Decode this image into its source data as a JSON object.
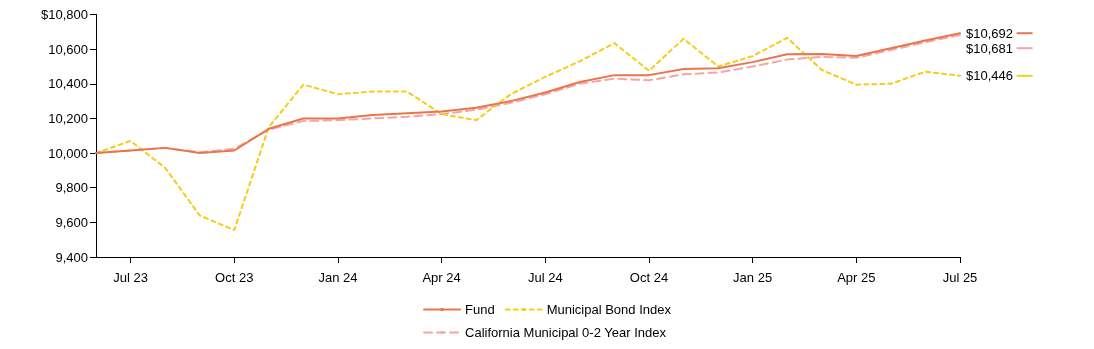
{
  "chart_data": {
    "type": "line",
    "categories": [
      null,
      "Jul 23",
      null,
      null,
      "Oct 23",
      null,
      null,
      "Jan 24",
      null,
      null,
      "Apr 24",
      null,
      null,
      "Jul 24",
      null,
      null,
      "Oct 24",
      null,
      null,
      "Jan 25",
      null,
      null,
      "Apr 25",
      null,
      null,
      "Jul 25"
    ],
    "series": [
      {
        "name": "Fund",
        "color": "#e8764a",
        "line_style": "solid",
        "values": [
          10000,
          10015,
          10030,
          10000,
          10015,
          10140,
          10200,
          10200,
          10220,
          10230,
          10240,
          10262,
          10300,
          10350,
          10410,
          10450,
          10450,
          10485,
          10490,
          10525,
          10570,
          10572,
          10560,
          10605,
          10650,
          10692
        ],
        "value_labels": [
          null,
          null,
          null,
          null,
          null,
          null,
          null,
          null,
          null,
          null,
          null,
          null,
          null,
          null,
          null,
          null,
          null,
          null,
          null,
          null,
          null,
          null,
          null,
          null,
          null,
          "$10,692"
        ]
      },
      {
        "name": "Municipal Bond Index",
        "color": "#f5cc1a",
        "line_style": "dotted",
        "values": [
          10000,
          10070,
          9915,
          9640,
          9555,
          10150,
          10395,
          10340,
          10355,
          10355,
          10225,
          10190,
          10340,
          10440,
          10530,
          10635,
          10475,
          10660,
          10500,
          10560,
          10665,
          10480,
          10395,
          10400,
          10470,
          10446
        ],
        "value_labels": [
          null,
          null,
          null,
          null,
          null,
          null,
          null,
          null,
          null,
          null,
          null,
          null,
          null,
          null,
          null,
          null,
          null,
          null,
          null,
          null,
          null,
          null,
          null,
          null,
          null,
          "$10,446"
        ]
      },
      {
        "name": "California Municipal 0-2 Year Index",
        "color": "#f4a6a6",
        "line_style": "dashed",
        "values": [
          10000,
          10015,
          10030,
          10005,
          10025,
          10135,
          10185,
          10190,
          10200,
          10210,
          10225,
          10250,
          10290,
          10340,
          10400,
          10430,
          10420,
          10455,
          10465,
          10500,
          10540,
          10555,
          10550,
          10595,
          10640,
          10681
        ],
        "value_labels": [
          null,
          null,
          null,
          null,
          null,
          null,
          null,
          null,
          null,
          null,
          null,
          null,
          null,
          null,
          null,
          null,
          null,
          null,
          null,
          null,
          null,
          null,
          null,
          null,
          null,
          "$10,681"
        ]
      }
    ],
    "ylim": [
      9400,
      10800
    ],
    "yticks": [
      {
        "value": 9400,
        "label": "9,400"
      },
      {
        "value": 9600,
        "label": "9,600"
      },
      {
        "value": 9800,
        "label": "9,800"
      },
      {
        "value": 10000,
        "label": "10,000"
      },
      {
        "value": 10200,
        "label": "10,200"
      },
      {
        "value": 10400,
        "label": "10,400"
      },
      {
        "value": 10600,
        "label": "10,600"
      },
      {
        "value": 10800,
        "label": "$10,800"
      }
    ],
    "grid": false,
    "legend": "bottom",
    "marker": "none"
  }
}
